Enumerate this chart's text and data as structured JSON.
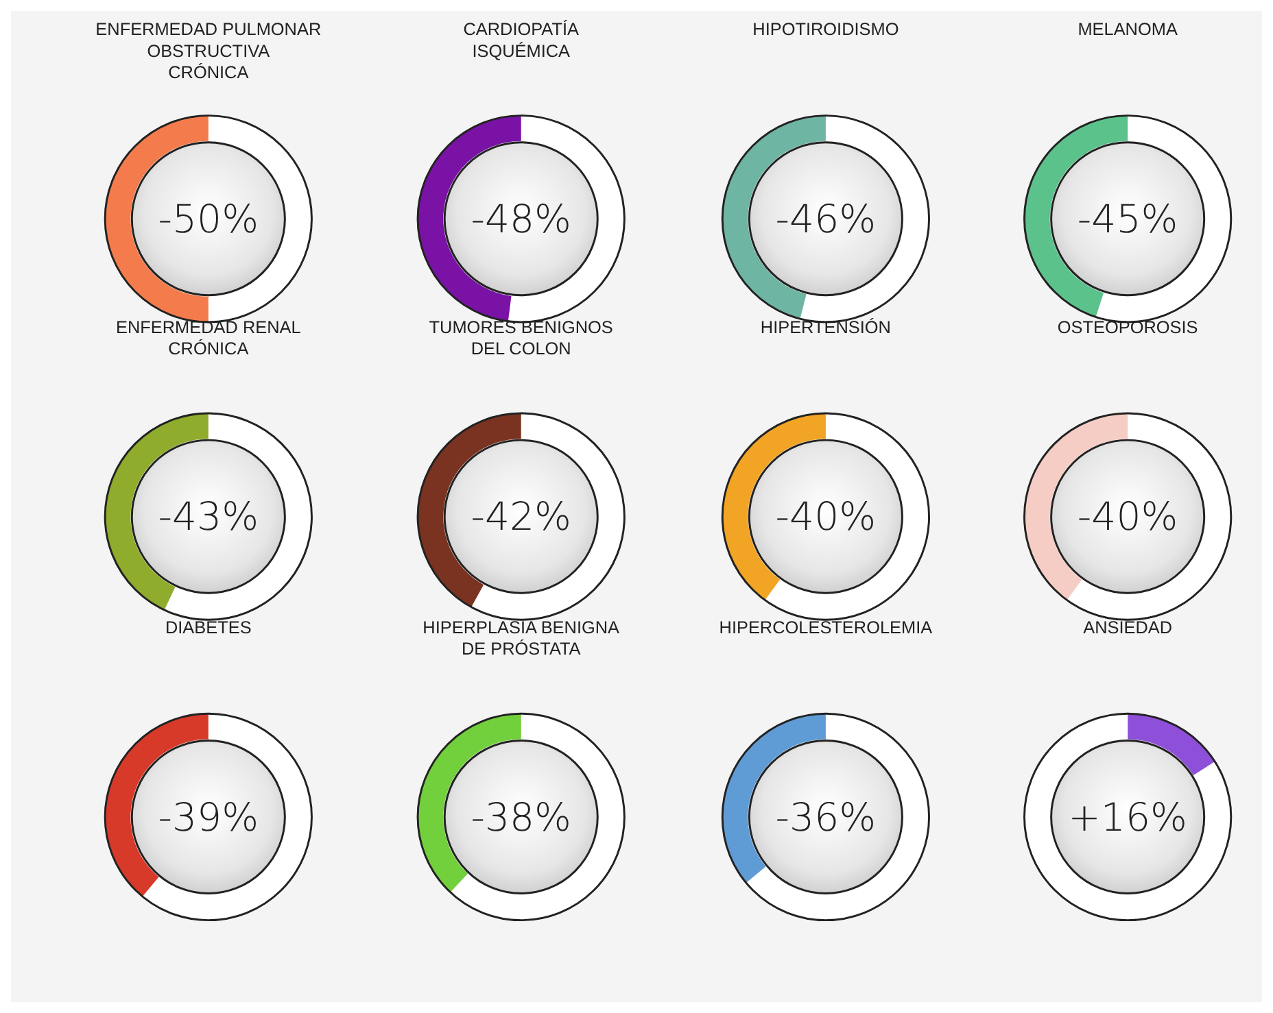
{
  "chart_data": [
    {
      "type": "donut",
      "title": "ENFERMEDAD PULMONAR\nOBSTRUCTIVA\nCRÓNICA",
      "categories": [
        null,
        null
      ],
      "values": [
        50,
        50
      ],
      "colors": [
        "#ffffff",
        "#f47c4c"
      ],
      "annotations": [
        "-50%"
      ]
    },
    {
      "type": "donut",
      "title": "CARDIOPATÍA\nISQUÉMICA",
      "categories": [
        null,
        null
      ],
      "values": [
        52,
        48
      ],
      "colors": [
        "#ffffff",
        "#7a12a6"
      ],
      "annotations": [
        "-48%"
      ]
    },
    {
      "type": "donut",
      "title": "HIPOTIROIDISMO",
      "categories": [
        null,
        null
      ],
      "values": [
        54,
        46
      ],
      "colors": [
        "#ffffff",
        "#6fb5a4"
      ],
      "annotations": [
        "-46%"
      ]
    },
    {
      "type": "donut",
      "title": "MELANOMA",
      "categories": [
        null,
        null
      ],
      "values": [
        55,
        45
      ],
      "colors": [
        "#ffffff",
        "#5cc28c"
      ],
      "annotations": [
        "-45%"
      ]
    },
    {
      "type": "donut",
      "title": "ENFERMEDAD RENAL\nCRÓNICA",
      "categories": [
        null,
        null
      ],
      "values": [
        57,
        43
      ],
      "colors": [
        "#ffffff",
        "#8fac2c"
      ],
      "annotations": [
        "-43%"
      ]
    },
    {
      "type": "donut",
      "title": "TUMORES BENIGNOS\nDEL COLON",
      "categories": [
        null,
        null
      ],
      "values": [
        58,
        42
      ],
      "colors": [
        "#ffffff",
        "#7a3320"
      ],
      "annotations": [
        "-42%"
      ]
    },
    {
      "type": "donut",
      "title": "HIPERTENSIÓN",
      "categories": [
        null,
        null
      ],
      "values": [
        60,
        40
      ],
      "colors": [
        "#ffffff",
        "#f2a424"
      ],
      "annotations": [
        "-40%"
      ]
    },
    {
      "type": "donut",
      "title": "OSTEOPOROSIS",
      "categories": [
        null,
        null
      ],
      "values": [
        60,
        40
      ],
      "colors": [
        "#ffffff",
        "#f6cdc4"
      ],
      "annotations": [
        "-40%"
      ]
    },
    {
      "type": "donut",
      "title": "DIABETES",
      "categories": [
        null,
        null
      ],
      "values": [
        61,
        39
      ],
      "colors": [
        "#ffffff",
        "#d83a2a"
      ],
      "annotations": [
        "-39%"
      ]
    },
    {
      "type": "donut",
      "title": "HIPERPLASIA BENIGNA\nDE PRÓSTATA",
      "categories": [
        null,
        null
      ],
      "values": [
        62,
        38
      ],
      "colors": [
        "#ffffff",
        "#72d03c"
      ],
      "annotations": [
        "-38%"
      ]
    },
    {
      "type": "donut",
      "title": "HIPERCOLESTEROLEMIA",
      "categories": [
        null,
        null
      ],
      "values": [
        64,
        36
      ],
      "colors": [
        "#ffffff",
        "#5f9cd6"
      ],
      "annotations": [
        "-36%"
      ]
    },
    {
      "type": "donut",
      "title": "ANSIEDAD",
      "categories": [
        null,
        null
      ],
      "values": [
        16,
        84
      ],
      "colors": [
        "#8e50d8",
        "#ffffff"
      ],
      "annotations": [
        "+16%"
      ]
    }
  ]
}
